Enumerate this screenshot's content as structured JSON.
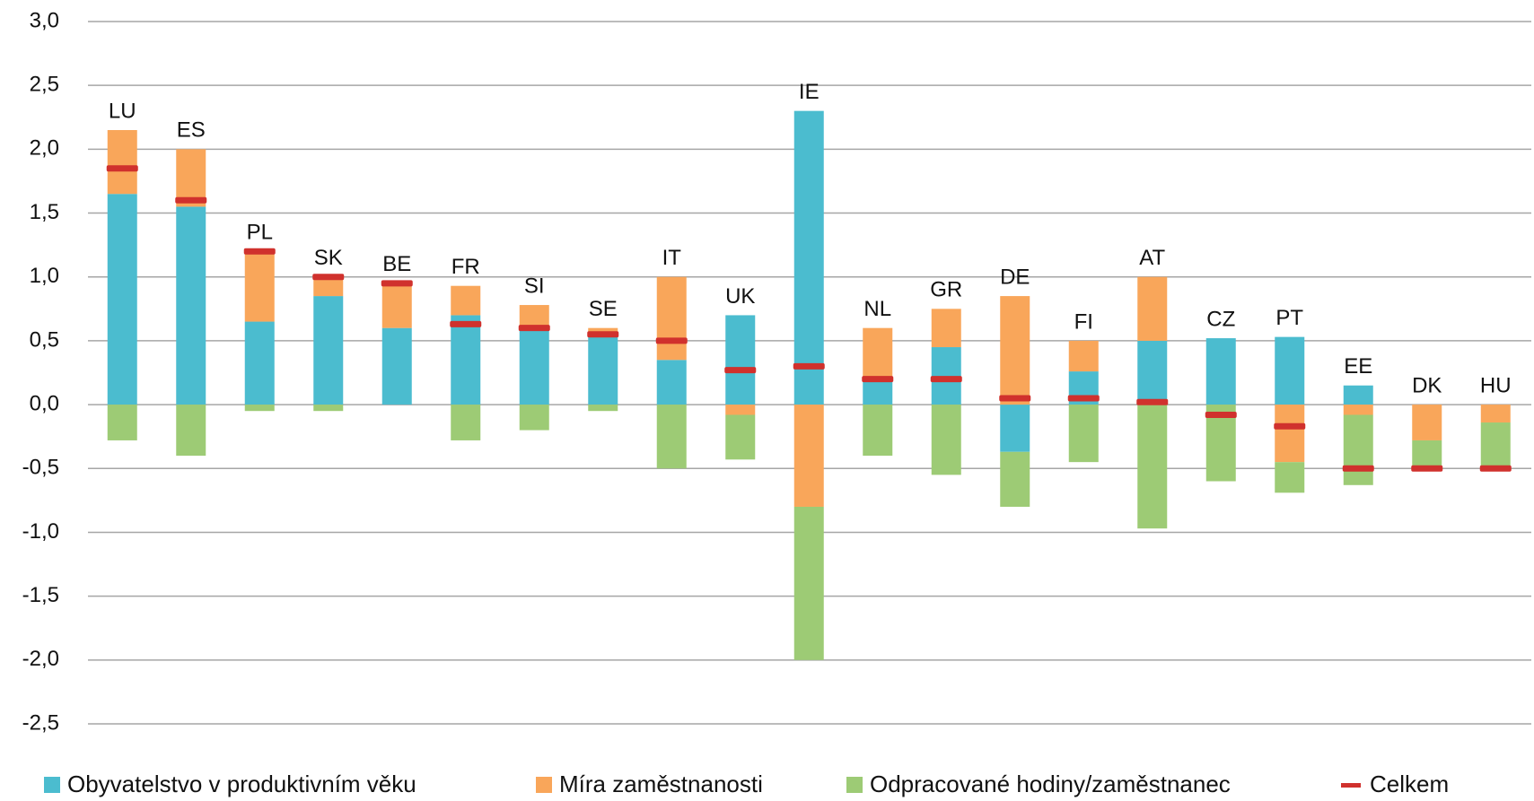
{
  "chart_data": {
    "type": "stacked-bar",
    "categories": [
      "LU",
      "ES",
      "PL",
      "SK",
      "BE",
      "FR",
      "SI",
      "SE",
      "IT",
      "UK",
      "IE",
      "NL",
      "GR",
      "DE",
      "FI",
      "AT",
      "CZ",
      "PT",
      "EE",
      "DK",
      "HU"
    ],
    "series": [
      {
        "name": "Obyvatelstvo v produktivním věku",
        "color": "#4bbccf",
        "values": [
          1.65,
          1.55,
          0.65,
          0.85,
          0.6,
          0.7,
          0.6,
          0.55,
          0.35,
          0.7,
          2.3,
          0.18,
          0.45,
          -0.37,
          0.26,
          0.5,
          0.52,
          0.53,
          0.15,
          0,
          0
        ]
      },
      {
        "name": "Míra zaměstnanosti",
        "color": "#f9a65a",
        "values": [
          0.5,
          0.45,
          0.55,
          0.15,
          0.35,
          0.23,
          0.18,
          0.05,
          0.65,
          -0.08,
          -0.8,
          0.42,
          0.3,
          0.85,
          0.24,
          0.5,
          0,
          -0.45,
          -0.08,
          -0.28,
          -0.14
        ]
      },
      {
        "name": "Odpracované hodiny/zaměstnanec",
        "color": "#9dcb75",
        "values": [
          -0.28,
          -0.4,
          -0.05,
          -0.05,
          0,
          -0.28,
          -0.2,
          -0.05,
          -0.5,
          -0.35,
          -1.2,
          -0.4,
          -0.55,
          -0.43,
          -0.45,
          -0.97,
          -0.6,
          -0.24,
          -0.55,
          -0.22,
          -0.36
        ]
      }
    ],
    "total": {
      "name": "Celkem",
      "color": "#d0312d",
      "values": [
        1.85,
        1.6,
        1.2,
        1.0,
        0.95,
        0.63,
        0.6,
        0.55,
        0.5,
        0.27,
        0.3,
        0.2,
        0.2,
        0.05,
        0.05,
        0.02,
        -0.08,
        -0.17,
        -0.5,
        -0.5,
        -0.5
      ]
    },
    "ylim": [
      -2.5,
      3.0
    ],
    "yticks": [
      {
        "value": -2.5,
        "label": "-2,5"
      },
      {
        "value": -2.0,
        "label": "-2,0"
      },
      {
        "value": -1.5,
        "label": "-1,5"
      },
      {
        "value": -1.0,
        "label": "-1,0"
      },
      {
        "value": -0.5,
        "label": "-0,5"
      },
      {
        "value": 0,
        "label": "0,0"
      },
      {
        "value": 0.5,
        "label": "0,5"
      },
      {
        "value": 1.0,
        "label": "1,0"
      },
      {
        "value": 1.5,
        "label": "1,5"
      },
      {
        "value": 2.0,
        "label": "2,0"
      },
      {
        "value": 2.5,
        "label": "2,5"
      },
      {
        "value": 3.0,
        "label": "3,0"
      }
    ],
    "grid": true,
    "legend": "bottom"
  }
}
